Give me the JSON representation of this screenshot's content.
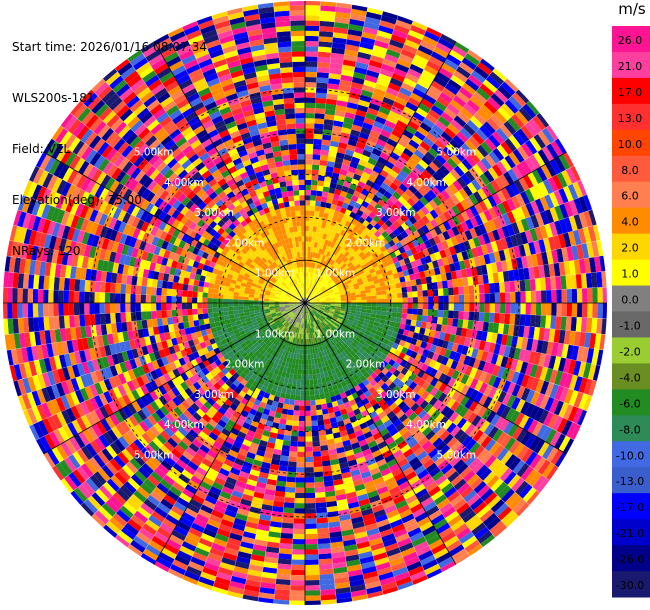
{
  "header": {
    "start_time": "Start time: 2026/01/16 08:07:34",
    "instrument": "WLS200s-181",
    "field": "Field: VEL",
    "elevation": "Elevation(deg): 35.00",
    "nrays": "NRays: 120"
  },
  "chart_data": {
    "type": "heatmap",
    "projection": "polar-ppi",
    "range_rings": [
      "1.00km",
      "2.00km",
      "3.00km",
      "4.00km",
      "5.00km"
    ],
    "spokes": 12,
    "colorbar": {
      "unit": "m/s",
      "labels": [
        "26.0",
        "21.0",
        "17.0",
        "13.0",
        "10.0",
        "8.0",
        "6.0",
        "4.0",
        "2.0",
        "1.0",
        "0.0",
        "-1.0",
        "-2.0",
        "-4.0",
        "-6.0",
        "-8.0",
        "-10.0",
        "-13.0",
        "-17.0",
        "-21.0",
        "-26.0",
        "-30.0"
      ],
      "colors": [
        "#ff1493",
        "#ff3fa0",
        "#ff0000",
        "#ff3030",
        "#ff4500",
        "#ff5a3c",
        "#ff7f50",
        "#ff8c00",
        "#ffd700",
        "#ffff00",
        "#808080",
        "#696969",
        "#9acd32",
        "#6b8e23",
        "#228b22",
        "#2e8b57",
        "#4169e1",
        "#3a5fcd",
        "#0000ff",
        "#0000cd",
        "#00008b",
        "#191970"
      ]
    }
  }
}
